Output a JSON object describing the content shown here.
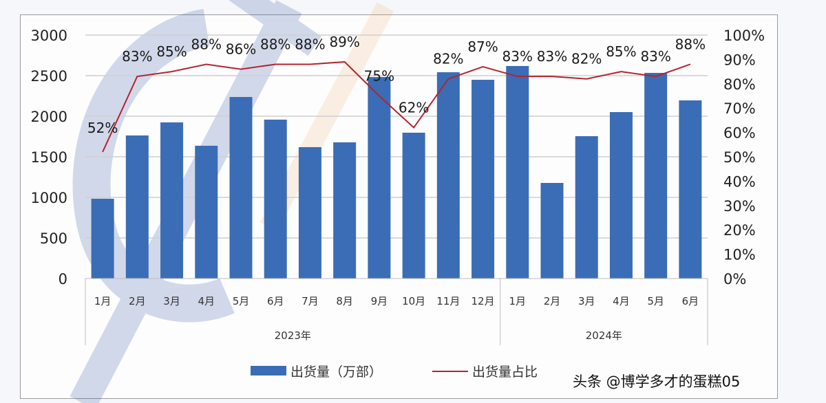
{
  "chart_data": {
    "type": "bar+line",
    "title": "",
    "categories": [
      "1月",
      "2月",
      "3月",
      "4月",
      "5月",
      "6月",
      "7月",
      "8月",
      "9月",
      "10月",
      "11月",
      "12月",
      "1月",
      "2月",
      "3月",
      "4月",
      "5月",
      "6月"
    ],
    "groups": [
      {
        "label": "2023年",
        "start": 0,
        "end": 11
      },
      {
        "label": "2024年",
        "start": 12,
        "end": 17
      }
    ],
    "series": [
      {
        "name": "出货量（万部）",
        "type": "bar",
        "axis": "left",
        "color": "#3a6db5",
        "values": [
          983,
          1763,
          1924,
          1636,
          2237,
          1958,
          1619,
          1678,
          2483,
          1797,
          2542,
          2449,
          2619,
          1178,
          1754,
          2051,
          2534,
          2195
        ]
      },
      {
        "name": "出货量占比",
        "type": "line",
        "axis": "right",
        "color": "#b5232e",
        "values": [
          52,
          83,
          85,
          88,
          86,
          88,
          88,
          89,
          75,
          62,
          82,
          87,
          83,
          83,
          82,
          85,
          83,
          88
        ],
        "labels": [
          "52%",
          "83%",
          "85%",
          "88%",
          "86%",
          "88%",
          "88%",
          "89%",
          "75%",
          "62%",
          "82%",
          "87%",
          "83%",
          "83%",
          "82%",
          "85%",
          "83%",
          "88%"
        ]
      }
    ],
    "y_left": {
      "ticks": [
        "0",
        "500",
        "1000",
        "1500",
        "2000",
        "2500",
        "3000"
      ],
      "range": [
        0,
        3000
      ]
    },
    "y_right": {
      "ticks": [
        "0%",
        "10%",
        "20%",
        "30%",
        "40%",
        "50%",
        "60%",
        "70%",
        "80%",
        "90%",
        "100%"
      ],
      "range": [
        0,
        100
      ]
    },
    "grid": true,
    "legend_position": "bottom"
  },
  "legend": {
    "bar_label": "出货量（万部）",
    "line_label": "出货量占比"
  },
  "watermark": "头条 @博学多才的蛋糕05"
}
